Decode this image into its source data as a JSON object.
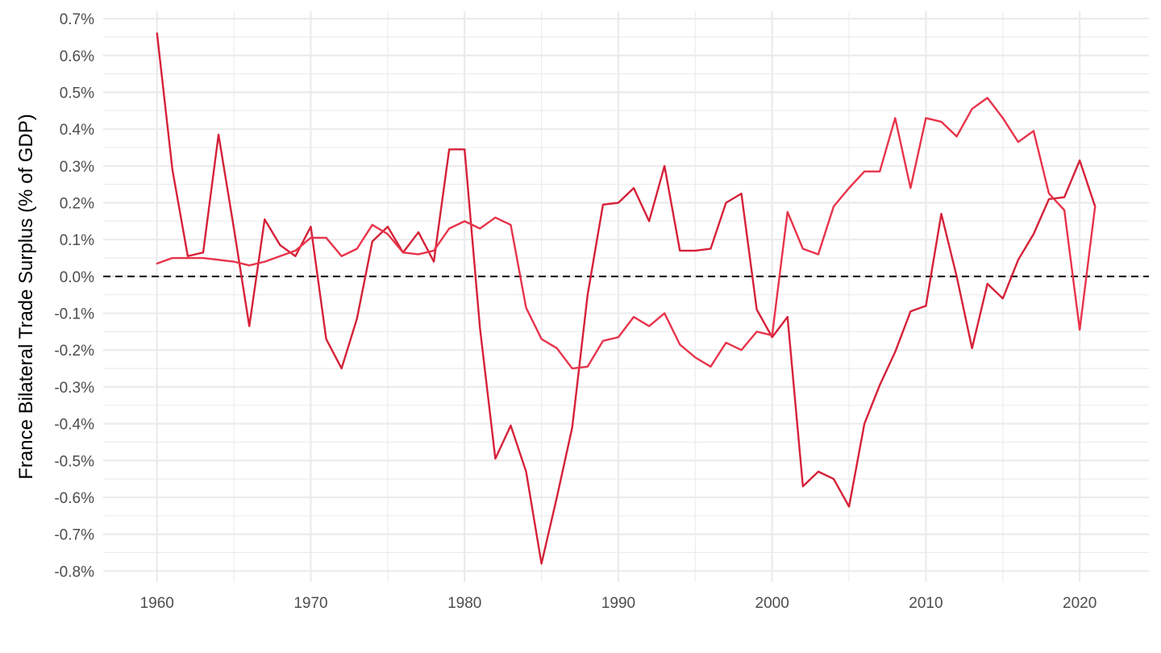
{
  "chart_data": {
    "type": "line",
    "title": "",
    "xlabel": "",
    "ylabel": "France Bilateral Trade Surplus (% of GDP)",
    "xlim": [
      1956.5,
      2024.5
    ],
    "ylim": [
      -0.0083,
      0.0072
    ],
    "x_ticks": [
      1960,
      1970,
      1980,
      1990,
      2000,
      2010,
      2020
    ],
    "x_tick_labels": [
      "1960",
      "1970",
      "1980",
      "1990",
      "2000",
      "2010",
      "2020"
    ],
    "y_ticks": [
      0.007,
      0.006,
      0.005,
      0.004,
      0.003,
      0.002,
      0.001,
      0.0,
      -0.001,
      -0.002,
      -0.003,
      -0.004,
      -0.005,
      -0.006,
      -0.007,
      -0.008
    ],
    "y_tick_labels": [
      "0.7%",
      "0.6%",
      "0.5%",
      "0.4%",
      "0.3%",
      "0.2%",
      "0.1%",
      "0.0%",
      "-0.1%",
      "-0.2%",
      "-0.3%",
      "-0.4%",
      "-0.5%",
      "-0.6%",
      "-0.7%",
      "-0.8%"
    ],
    "grid": true,
    "legend": "none",
    "reference_line": {
      "y": 0,
      "style": "dashed",
      "color": "#000000"
    },
    "x": [
      1960,
      1961,
      1962,
      1963,
      1964,
      1965,
      1966,
      1967,
      1968,
      1969,
      1970,
      1971,
      1972,
      1973,
      1974,
      1975,
      1976,
      1977,
      1978,
      1979,
      1980,
      1981,
      1982,
      1983,
      1984,
      1985,
      1986,
      1987,
      1988,
      1989,
      1990,
      1991,
      1992,
      1993,
      1994,
      1995,
      1996,
      1997,
      1998,
      1999,
      2000,
      2001,
      2002,
      2003,
      2004,
      2005,
      2006,
      2007,
      2008,
      2009,
      2010,
      2011,
      2012,
      2013,
      2014,
      2015,
      2016,
      2017,
      2018,
      2019,
      2020,
      2021
    ],
    "series": [
      {
        "color": "#d62138",
        "values": [
          0.0066,
          0.0029,
          0.00055,
          0.00065,
          0.00385,
          0.0013,
          -0.00135,
          0.00155,
          0.00085,
          0.00055,
          0.00135,
          -0.0017,
          -0.0025,
          -0.00115,
          0.00095,
          0.00135,
          0.00065,
          0.0012,
          0.0004,
          0.00345,
          0.00345,
          -0.0014,
          -0.00495,
          -0.00405,
          -0.0053,
          -0.0078,
          -0.006,
          -0.0041,
          -0.0005,
          0.00195,
          0.002,
          0.0024,
          0.0015,
          0.003,
          0.0007,
          0.0007,
          0.00075,
          0.002,
          0.00225,
          -0.0009,
          -0.00165,
          -0.0011,
          -0.0057,
          -0.0053,
          -0.0055,
          -0.00625,
          -0.004,
          -0.00295,
          -0.00205,
          -0.00095,
          -0.0008,
          0.0017,
          0,
          -0.00195,
          -0.0002,
          -0.0006,
          0.00045,
          0.00115,
          0.0021,
          0.00215,
          0.00315,
          0.0019
        ]
      },
      {
        "color": "#e8334a",
        "values": [
          0.00035,
          0.0005,
          0.0005,
          0.0005,
          0.00045,
          0.0004,
          0.0003,
          0.0004,
          0.00055,
          0.0007,
          0.00105,
          0.00105,
          0.00055,
          0.00075,
          0.0014,
          0.00115,
          0.00065,
          0.0006,
          0.0007,
          0.0013,
          0.0015,
          0.0013,
          0.0016,
          0.0014,
          -0.00085,
          -0.0017,
          -0.00195,
          -0.0025,
          -0.00245,
          -0.00175,
          -0.00165,
          -0.0011,
          -0.00135,
          -0.001,
          -0.00185,
          -0.0022,
          -0.00245,
          -0.0018,
          -0.002,
          -0.0015,
          -0.0016,
          0.00175,
          0.00075,
          0.0006,
          0.0019,
          0.0024,
          0.00285,
          0.00285,
          0.0043,
          0.0024,
          0.0043,
          0.0042,
          0.0038,
          0.00455,
          0.00485,
          0.0043,
          0.00365,
          0.00395,
          0.00225,
          0.0018,
          -0.00145,
          0.0019
        ]
      }
    ]
  }
}
